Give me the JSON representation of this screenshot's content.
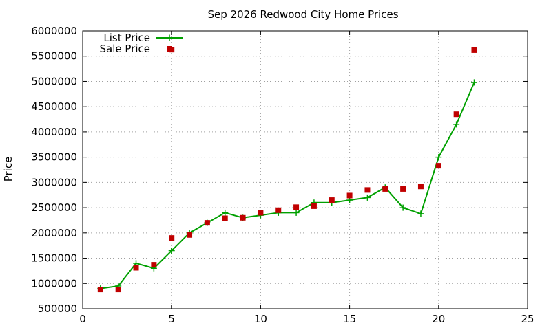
{
  "chart_data": {
    "type": "line",
    "title": "Sep 2026 Redwood City Home Prices",
    "xlabel": "",
    "ylabel": "Price",
    "xlim": [
      0,
      25
    ],
    "ylim": [
      500000,
      6000000
    ],
    "x_ticks": [
      0,
      5,
      10,
      15,
      20,
      25
    ],
    "y_ticks": [
      500000,
      1000000,
      1500000,
      2000000,
      2500000,
      3000000,
      3500000,
      4000000,
      4500000,
      5000000,
      5500000,
      6000000
    ],
    "grid": true,
    "legend_position": "top-left",
    "series": [
      {
        "name": "List Price",
        "style": "line+cross",
        "color": "#00a000",
        "x": [
          1,
          2,
          3,
          4,
          5,
          6,
          7,
          8,
          9,
          10,
          11,
          12,
          13,
          14,
          15,
          16,
          17,
          18,
          19,
          20,
          21,
          22
        ],
        "y": [
          900000,
          950000,
          1400000,
          1300000,
          1650000,
          2000000,
          2200000,
          2400000,
          2300000,
          2350000,
          2400000,
          2400000,
          2600000,
          2600000,
          2650000,
          2700000,
          2900000,
          2500000,
          2380000,
          3500000,
          4150000,
          4980000
        ]
      },
      {
        "name": "Sale Price",
        "style": "square",
        "color": "#c00000",
        "x": [
          1,
          2,
          3,
          4,
          5,
          6,
          7,
          8,
          9,
          10,
          11,
          12,
          13,
          14,
          15,
          16,
          17,
          18,
          19,
          20,
          21,
          22
        ],
        "y": [
          880000,
          880000,
          1310000,
          1370000,
          1900000,
          1960000,
          2200000,
          2290000,
          2300000,
          2400000,
          2450000,
          2510000,
          2530000,
          2650000,
          2740000,
          2850000,
          2870000,
          2870000,
          2920000,
          3330000,
          4350000,
          5620000
        ]
      },
      {
        "name": "",
        "style": "square",
        "color": "#c00000",
        "x": [
          5
        ],
        "y": [
          5630000
        ]
      }
    ]
  }
}
